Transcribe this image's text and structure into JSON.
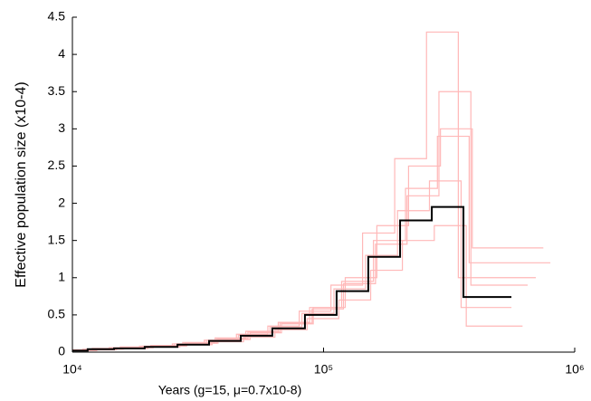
{
  "chart_data": {
    "type": "step",
    "xlabel": "Years (g=15, μ=0.7x10-8)",
    "ylabel": "Effective population size (x10-4)",
    "xscale": "log",
    "xlim": [
      10000,
      1000000
    ],
    "xticks": [
      {
        "value": 10000,
        "label": "10⁴"
      },
      {
        "value": 100000,
        "label": "10⁵"
      },
      {
        "value": 1000000,
        "label": "10⁶"
      }
    ],
    "ylim": [
      0,
      4.5
    ],
    "yticks": [
      0,
      0.5,
      1,
      1.5,
      2,
      2.5,
      3,
      3.5,
      4,
      4.5
    ],
    "series": [
      {
        "color": "#ffb8b8",
        "x": [
          10000,
          12000,
          15500,
          20500,
          27500,
          37000,
          49000,
          66000,
          88000,
          118000,
          158000,
          212000,
          284000,
          380000,
          800000
        ],
        "values": [
          0.03,
          0.05,
          0.07,
          0.09,
          0.13,
          0.19,
          0.28,
          0.4,
          0.6,
          0.95,
          1.5,
          2.2,
          2.9,
          1.2,
          1.2
        ]
      },
      {
        "color": "#ffb8b8",
        "x": [
          10000,
          11000,
          14000,
          18500,
          25000,
          33500,
          45000,
          60000,
          80000,
          107000,
          143000,
          192000,
          257000,
          344000,
          700000
        ],
        "values": [
          0.02,
          0.04,
          0.06,
          0.08,
          0.11,
          0.16,
          0.24,
          0.35,
          0.55,
          0.9,
          1.6,
          2.6,
          4.3,
          1.0,
          1.0
        ]
      },
      {
        "color": "#ffb8b8",
        "x": [
          10000,
          11800,
          15000,
          20000,
          26800,
          36000,
          48000,
          64000,
          86000,
          115000,
          154000,
          206000,
          276000,
          370000,
          620000
        ],
        "values": [
          0.02,
          0.03,
          0.05,
          0.07,
          0.1,
          0.14,
          0.2,
          0.3,
          0.45,
          0.7,
          1.1,
          1.5,
          1.7,
          0.35,
          0.35
        ]
      },
      {
        "color": "#ffb8b8",
        "x": [
          10000,
          12500,
          16000,
          21000,
          28500,
          38000,
          51000,
          68000,
          91000,
          122000,
          163000,
          218000,
          292000,
          391000,
          750000
        ],
        "values": [
          0.02,
          0.04,
          0.06,
          0.08,
          0.12,
          0.17,
          0.26,
          0.38,
          0.6,
          1.0,
          1.7,
          2.5,
          3.0,
          1.4,
          1.4
        ]
      },
      {
        "color": "#ffb8b8",
        "x": [
          10000,
          11300,
          14400,
          19000,
          25500,
          34200,
          45800,
          61200,
          82000,
          110000,
          147000,
          197000,
          264000,
          353000,
          560000
        ],
        "values": [
          0.03,
          0.04,
          0.06,
          0.08,
          0.11,
          0.16,
          0.23,
          0.34,
          0.52,
          0.85,
          1.3,
          1.9,
          2.3,
          0.6,
          0.6
        ]
      },
      {
        "color": "#ffb8b8",
        "x": [
          10000,
          12200,
          15800,
          20800,
          28000,
          37500,
          50000,
          67000,
          90000,
          120000,
          161000,
          215000,
          288000,
          386000,
          650000
        ],
        "values": [
          0.02,
          0.04,
          0.06,
          0.09,
          0.12,
          0.18,
          0.27,
          0.39,
          0.58,
          0.92,
          1.45,
          2.1,
          3.5,
          0.9,
          0.9
        ]
      },
      {
        "color": "#000000",
        "x": [
          10000,
          11500,
          14650,
          19400,
          26200,
          35000,
          46800,
          62500,
          84300,
          112700,
          150700,
          201700,
          269800,
          360600,
          559800
        ],
        "values": [
          0.02,
          0.04,
          0.05,
          0.07,
          0.1,
          0.15,
          0.22,
          0.32,
          0.5,
          0.82,
          1.28,
          1.77,
          1.95,
          0.74,
          0.74
        ]
      }
    ]
  }
}
